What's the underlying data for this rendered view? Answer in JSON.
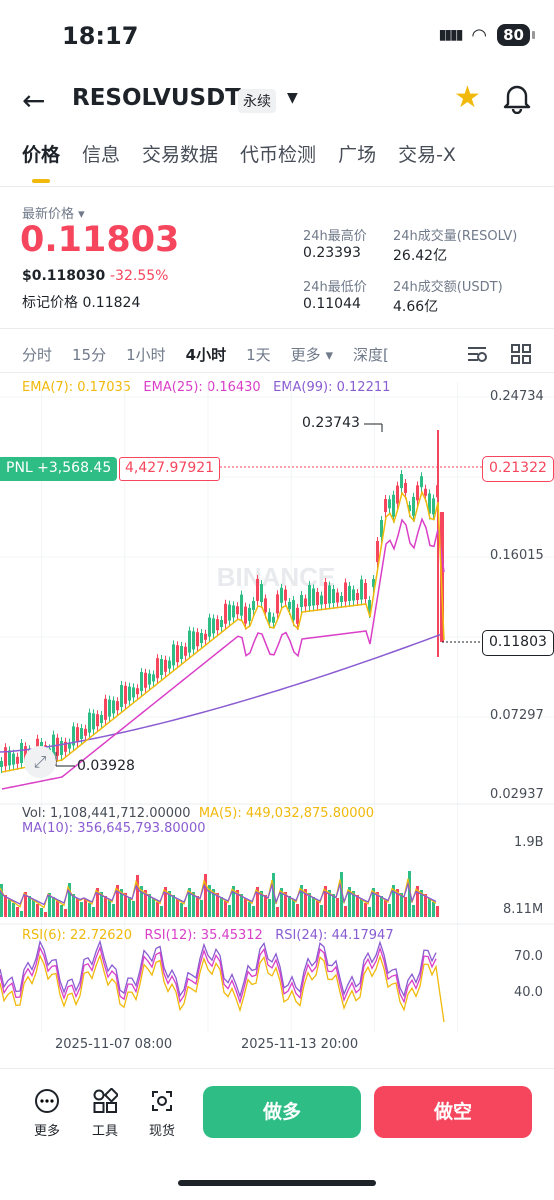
{
  "status": {
    "time": "18:17",
    "battery": "80"
  },
  "header": {
    "symbol": "RESOLVUSDT",
    "badge": "永续"
  },
  "tabs": [
    "价格",
    "信息",
    "交易数据",
    "代币检测",
    "广场",
    "交易-X"
  ],
  "price": {
    "last_label": "最新价格",
    "last": "0.11803",
    "usd": "$0.118030",
    "change": "-32.55%",
    "mark_label": "标记价格",
    "mark": "0.11824"
  },
  "stats": {
    "high_label": "24h最高价",
    "high": "0.23393",
    "low_label": "24h最低价",
    "low": "0.11044",
    "vol_base_label": "24h成交量(RESOLV)",
    "vol_base": "26.42亿",
    "vol_quote_label": "24h成交额(USDT)",
    "vol_quote": "4.66亿"
  },
  "intervals": [
    "分时",
    "15分",
    "1小时",
    "4小时",
    "1天",
    "更多",
    "深度["
  ],
  "ema": {
    "e7": "EMA(7): 0.17035",
    "e25": "EMA(25): 0.16430",
    "e99": "EMA(99): 0.12211"
  },
  "price_axis": [
    "0.24734",
    "0.16015",
    "0.07297",
    "0.02937"
  ],
  "annotations": {
    "high": "0.23743",
    "low": "0.03928"
  },
  "tags": {
    "pnl": "PNL +3,568.45",
    "position": "4,427.97921",
    "liq": "0.21322",
    "current": "0.11803"
  },
  "watermark": "BINANCE",
  "volume": {
    "vol": "Vol: 1,108,441,712.00000",
    "ma5": "MA(5): 449,032,875.80000",
    "ma10": "MA(10): 356,645,793.80000",
    "axis_top": "1.9B",
    "axis_bottom": "8.11M"
  },
  "rsi": {
    "r6": "RSI(6): 22.72620",
    "r12": "RSI(12): 35.45312",
    "r24": "RSI(24): 44.17947",
    "axis_70": "70.0",
    "axis_40": "40.0"
  },
  "dates": [
    "2025-11-07 08:00",
    "2025-11-13 20:00"
  ],
  "toolbar": {
    "more": "更多",
    "tools": "工具",
    "spot": "现货",
    "long": "做多",
    "short": "做空"
  },
  "colors": {
    "up": "#2ebd85",
    "down": "#f6465d",
    "ema7": "#f0b90b",
    "ema25": "#d93fc7",
    "ema99": "#8a5cd1",
    "accent": "#f0b90b"
  }
}
